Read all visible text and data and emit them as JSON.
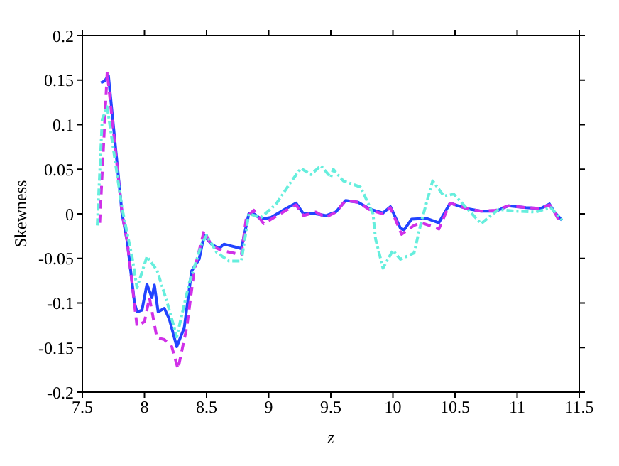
{
  "chart_data": {
    "type": "line",
    "xlabel": "z",
    "ylabel": "Skewness",
    "xlim": [
      7.5,
      11.5
    ],
    "xticks": [
      7.5,
      8,
      8.5,
      9,
      9.5,
      10,
      10.5,
      11,
      11.5
    ],
    "ylim": [
      -0.2,
      0.2
    ],
    "yticks": [
      -0.2,
      -0.15,
      -0.1,
      -0.05,
      0,
      0.05,
      0.1,
      0.15,
      0.2
    ],
    "legend": false,
    "marker": "none",
    "series": [
      {
        "color": "#66eedd",
        "line_style": "dashdot",
        "x": [
          7.62,
          7.66,
          7.7,
          7.82,
          7.9,
          7.94,
          8.02,
          8.1,
          8.18,
          8.26,
          8.36,
          8.46,
          8.5,
          8.58,
          8.68,
          8.78,
          8.84,
          8.94,
          9.06,
          9.18,
          9.26,
          9.34,
          9.42,
          9.5,
          9.52,
          9.6,
          9.74,
          9.84,
          9.86,
          9.92,
          10.0,
          10.06,
          10.17,
          10.23,
          10.32,
          10.41,
          10.49,
          10.59,
          10.71,
          10.85,
          10.99,
          11.15,
          11.27,
          11.36
        ],
        "values": [
          -0.013,
          0.106,
          0.12,
          0.006,
          -0.048,
          -0.083,
          -0.048,
          -0.063,
          -0.098,
          -0.138,
          -0.078,
          -0.034,
          -0.024,
          -0.043,
          -0.053,
          -0.053,
          0,
          -0.004,
          0.011,
          0.036,
          0.051,
          0.044,
          0.054,
          0.041,
          0.05,
          0.037,
          0.03,
          0,
          -0.028,
          -0.061,
          -0.041,
          -0.051,
          -0.044,
          -0.008,
          0.037,
          0.02,
          0.022,
          0.007,
          -0.011,
          0.005,
          0.003,
          0.002,
          0.007,
          -0.007
        ]
      },
      {
        "color": "#d030e8",
        "line_style": "dashed",
        "x": [
          7.64,
          7.7,
          7.82,
          7.86,
          7.94,
          8.0,
          8.04,
          8.1,
          8.16,
          8.22,
          8.27,
          8.34,
          8.4,
          8.48,
          8.54,
          8.62,
          8.78,
          8.82,
          8.88,
          8.96,
          9.02,
          9.14,
          9.22,
          9.28,
          9.38,
          9.46,
          9.54,
          9.62,
          9.72,
          9.82,
          9.92,
          9.98,
          10.07,
          10.17,
          10.23,
          10.37,
          10.46,
          10.59,
          10.71,
          10.83,
          10.93,
          11.07,
          11.19,
          11.26,
          11.3,
          11.34
        ],
        "values": [
          -0.01,
          0.159,
          0.0,
          -0.03,
          -0.126,
          -0.121,
          -0.094,
          -0.139,
          -0.141,
          -0.149,
          -0.174,
          -0.128,
          -0.064,
          -0.019,
          -0.036,
          -0.041,
          -0.046,
          -0.004,
          0.004,
          -0.011,
          -0.006,
          0.004,
          0.01,
          -0.002,
          0.002,
          -0.004,
          0.002,
          0.015,
          0.013,
          0.004,
          0.0,
          0.007,
          -0.023,
          -0.013,
          -0.01,
          -0.017,
          0.012,
          0.006,
          0.003,
          0.004,
          0.009,
          0.007,
          0.006,
          0.01,
          0.002,
          -0.008
        ]
      },
      {
        "color": "#2244ff",
        "line_style": "solid",
        "x": [
          7.65,
          7.68,
          7.71,
          7.82,
          7.86,
          7.92,
          7.94,
          7.98,
          8.02,
          8.06,
          8.08,
          8.11,
          8.16,
          8.2,
          8.26,
          8.32,
          8.38,
          8.44,
          8.48,
          8.54,
          8.6,
          8.64,
          8.78,
          8.84,
          8.88,
          8.94,
          9.02,
          9.14,
          9.22,
          9.28,
          9.38,
          9.46,
          9.54,
          9.62,
          9.72,
          9.82,
          9.92,
          9.98,
          10.06,
          10.09,
          10.15,
          10.27,
          10.37,
          10.46,
          10.59,
          10.71,
          10.83,
          10.93,
          11.07,
          11.19,
          11.26,
          11.3,
          11.36
        ],
        "values": [
          0.147,
          0.149,
          0.155,
          0.0,
          -0.03,
          -0.1,
          -0.11,
          -0.108,
          -0.079,
          -0.094,
          -0.08,
          -0.11,
          -0.106,
          -0.118,
          -0.149,
          -0.128,
          -0.064,
          -0.051,
          -0.024,
          -0.034,
          -0.039,
          -0.034,
          -0.039,
          0.0,
          0.0,
          -0.006,
          -0.004,
          0.006,
          0.012,
          0.0,
          0.0,
          -0.002,
          0.002,
          0.015,
          0.013,
          0.005,
          0.001,
          0.008,
          -0.016,
          -0.018,
          -0.006,
          -0.005,
          -0.01,
          0.012,
          0.006,
          0.003,
          0.003,
          0.009,
          0.007,
          0.006,
          0.011,
          0.002,
          -0.007
        ]
      }
    ]
  }
}
